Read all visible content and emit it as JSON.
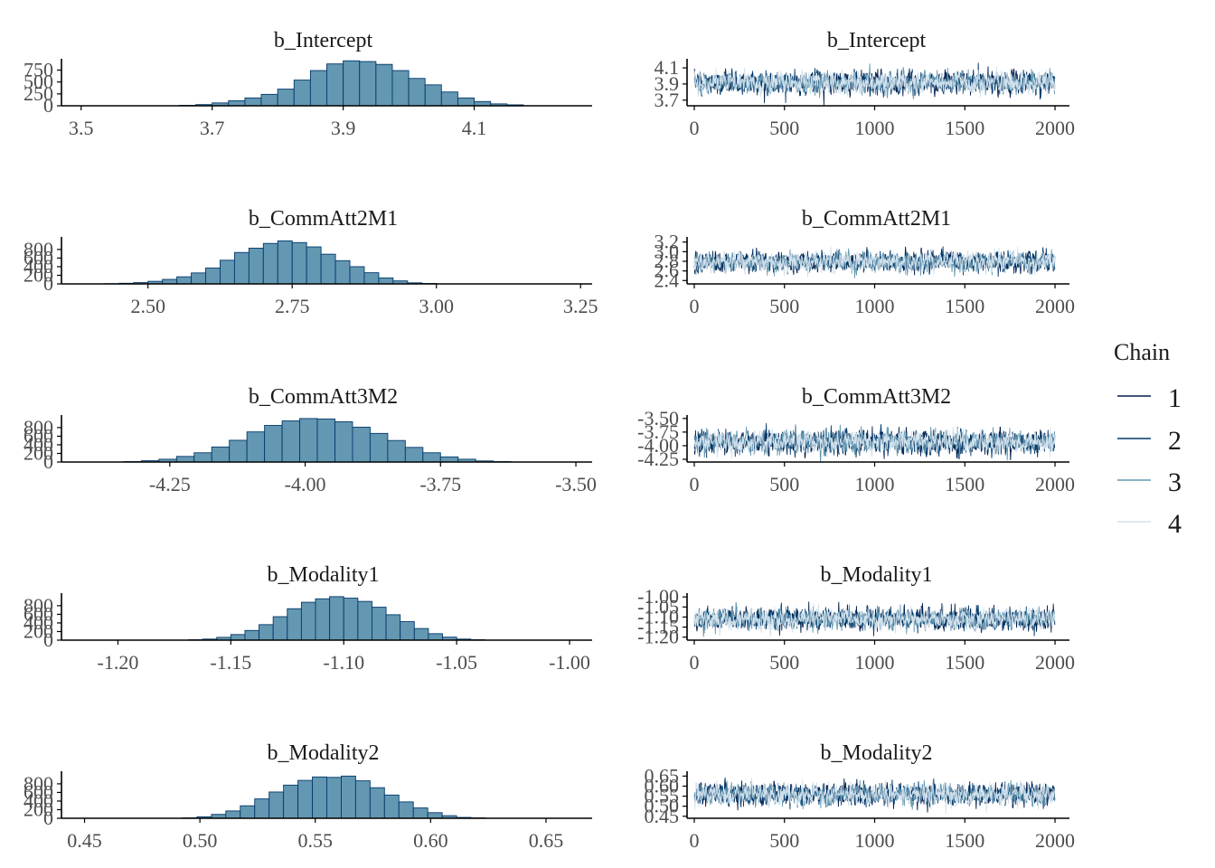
{
  "chart_data": [
    {
      "type": "histogram",
      "title": "b_Intercept",
      "xlim": [
        3.47,
        4.28
      ],
      "ylim": [
        0,
        950
      ],
      "xticks": [
        3.5,
        3.7,
        3.9,
        4.1
      ],
      "xtick_labels": [
        "3.5",
        "3.7",
        "3.9",
        "4.1"
      ],
      "yticks": [
        0,
        250,
        500,
        750
      ],
      "ytick_labels": [
        "0",
        "250",
        "500",
        "750"
      ],
      "bin_start": 3.5,
      "bin_width": 0.025,
      "counts": [
        0,
        0,
        0,
        0,
        0,
        0,
        10,
        25,
        60,
        105,
        165,
        240,
        350,
        540,
        740,
        880,
        945,
        930,
        870,
        740,
        575,
        440,
        290,
        165,
        90,
        40,
        20,
        0,
        0,
        0
      ]
    },
    {
      "type": "trace",
      "title": "b_CommAtt2M1",
      "xlim": [
        -40,
        2080
      ],
      "ylim": [
        2.33,
        3.27
      ],
      "xticks": [
        0,
        500,
        1000,
        1500,
        2000
      ],
      "xtick_labels": [
        "0",
        "500",
        "1000",
        "1500",
        "2000"
      ],
      "yticks": [
        2.4,
        2.6,
        2.8,
        3.0,
        3.2
      ],
      "ytick_labels": [
        "2.4",
        "2.6",
        "2.8",
        "3.0",
        "3.2"
      ],
      "chains": [
        "1",
        "2",
        "3",
        "4"
      ],
      "draws": 2000,
      "center": 2.79,
      "sd": 0.095
    }
  ],
  "panels": [
    {
      "hist": {
        "title": "b_Intercept",
        "xlim": [
          3.47,
          4.28
        ],
        "ylim": [
          0,
          950
        ],
        "xticks": [
          3.5,
          3.7,
          3.9,
          4.1
        ],
        "xtick_labels": [
          "3.5",
          "3.7",
          "3.9",
          "4.1"
        ],
        "yticks": [
          0,
          250,
          500,
          750
        ],
        "ytick_labels": [
          "0",
          "250",
          "500",
          "750"
        ],
        "bin_start": 3.5,
        "bin_width": 0.025,
        "counts": [
          0,
          0,
          0,
          0,
          0,
          0,
          10,
          25,
          60,
          105,
          165,
          240,
          350,
          540,
          740,
          880,
          945,
          930,
          870,
          740,
          575,
          440,
          290,
          165,
          90,
          40,
          20,
          0,
          0,
          0
        ]
      },
      "trace": {
        "title": "b_Intercept",
        "xlim": [
          -40,
          2080
        ],
        "ylim": [
          3.63,
          4.19
        ],
        "xticks": [
          0,
          500,
          1000,
          1500,
          2000
        ],
        "xtick_labels": [
          "0",
          "500",
          "1000",
          "1500",
          "2000"
        ],
        "yticks": [
          3.7,
          3.9,
          4.1
        ],
        "ytick_labels": [
          "3.7",
          "3.9",
          "4.1"
        ],
        "center": 3.92,
        "sd": 0.065
      }
    },
    {
      "hist": {
        "title": "b_CommAtt2M1",
        "xlim": [
          2.35,
          3.27
        ],
        "ylim": [
          0,
          1050
        ],
        "xticks": [
          2.5,
          2.75,
          3.0,
          3.25
        ],
        "xtick_labels": [
          "2.50",
          "2.75",
          "3.00",
          "3.25"
        ],
        "yticks": [
          0,
          200,
          400,
          600,
          800
        ],
        "ytick_labels": [
          "0",
          "200",
          "400",
          "600",
          "800"
        ],
        "bin_start": 2.425,
        "bin_width": 0.025,
        "counts": [
          5,
          15,
          30,
          60,
          105,
          165,
          255,
          370,
          550,
          730,
          830,
          940,
          1000,
          960,
          860,
          690,
          540,
          400,
          260,
          140,
          70,
          25,
          10,
          0
        ]
      },
      "trace": {
        "title": "b_CommAtt2M1",
        "xlim": [
          -40,
          2080
        ],
        "ylim": [
          2.33,
          3.27
        ],
        "xticks": [
          0,
          500,
          1000,
          1500,
          2000
        ],
        "xtick_labels": [
          "0",
          "500",
          "1000",
          "1500",
          "2000"
        ],
        "yticks": [
          2.4,
          2.6,
          2.8,
          3.0,
          3.2
        ],
        "ytick_labels": [
          "2.4",
          "2.6",
          "2.8",
          "3.0",
          "3.2"
        ],
        "center": 2.79,
        "sd": 0.095
      }
    },
    {
      "hist": {
        "title": "b_CommAtt3M2",
        "xlim": [
          -4.45,
          -3.47
        ],
        "ylim": [
          0,
          1050
        ],
        "xticks": [
          -4.25,
          -4.0,
          -3.75,
          -3.5
        ],
        "xtick_labels": [
          "-4.25",
          "-4.00",
          "-3.75",
          "-3.50"
        ],
        "yticks": [
          0,
          200,
          400,
          600,
          800
        ],
        "ytick_labels": [
          "0",
          "200",
          "400",
          "600",
          "800"
        ],
        "bin_start": -4.4,
        "bin_width": 0.0325,
        "counts": [
          0,
          0,
          10,
          30,
          65,
          130,
          215,
          350,
          505,
          700,
          850,
          955,
          1010,
          1000,
          935,
          810,
          665,
          500,
          340,
          215,
          120,
          65,
          25,
          10,
          0
        ]
      },
      "trace": {
        "title": "b_CommAtt3M2",
        "xlim": [
          -40,
          2080
        ],
        "ylim": [
          -4.3,
          -3.47
        ],
        "xticks": [
          0,
          500,
          1000,
          1500,
          2000
        ],
        "xtick_labels": [
          "0",
          "500",
          "1000",
          "1500",
          "2000"
        ],
        "yticks": [
          -4.25,
          -4.0,
          -3.75,
          -3.5
        ],
        "ytick_labels": [
          "-4.25",
          "-4.00",
          "-3.75",
          "-3.50"
        ],
        "center": -3.93,
        "sd": 0.1
      }
    },
    {
      "hist": {
        "title": "b_Modality1",
        "xlim": [
          -1.225,
          -0.99
        ],
        "ylim": [
          0,
          1050
        ],
        "xticks": [
          -1.2,
          -1.15,
          -1.1,
          -1.05,
          -1.0
        ],
        "xtick_labels": [
          "-1.20",
          "-1.15",
          "-1.10",
          "-1.05",
          "-1.00"
        ],
        "yticks": [
          0,
          200,
          400,
          600,
          800
        ],
        "ytick_labels": [
          "0",
          "200",
          "400",
          "600",
          "800"
        ],
        "bin_start": -1.2,
        "bin_width": 0.00625,
        "counts": [
          0,
          0,
          0,
          0,
          0,
          10,
          25,
          65,
          130,
          225,
          360,
          545,
          730,
          880,
          960,
          1010,
          975,
          900,
          765,
          590,
          430,
          270,
          150,
          70,
          25,
          10,
          0,
          0,
          0,
          0,
          0,
          0
        ]
      },
      "trace": {
        "title": "b_Modality1",
        "xlim": [
          -40,
          2080
        ],
        "ylim": [
          -1.215,
          -0.99
        ],
        "xticks": [
          0,
          500,
          1000,
          1500,
          2000
        ],
        "xtick_labels": [
          "0",
          "500",
          "1000",
          "1500",
          "2000"
        ],
        "yticks": [
          -1.2,
          -1.15,
          -1.1,
          -1.05,
          -1.0
        ],
        "ytick_labels": [
          "-1.20",
          "-1.15",
          "-1.10",
          "-1.05",
          "-1.00"
        ],
        "center": -1.11,
        "sd": 0.025
      }
    },
    {
      "hist": {
        "title": "b_Modality2",
        "xlim": [
          0.44,
          0.67
        ],
        "ylim": [
          0,
          1050
        ],
        "xticks": [
          0.45,
          0.5,
          0.55,
          0.6,
          0.65
        ],
        "xtick_labels": [
          "0.45",
          "0.50",
          "0.55",
          "0.60",
          "0.65"
        ],
        "yticks": [
          0,
          200,
          400,
          600,
          800
        ],
        "ytick_labels": [
          "0",
          "200",
          "400",
          "600",
          "800"
        ],
        "bin_start": 0.455,
        "bin_width": 0.00625,
        "counts": [
          0,
          0,
          0,
          0,
          0,
          0,
          10,
          35,
          90,
          170,
          290,
          450,
          610,
          770,
          880,
          960,
          950,
          980,
          870,
          710,
          540,
          380,
          240,
          130,
          60,
          20,
          10,
          0,
          0,
          0,
          0,
          0,
          0,
          0
        ]
      },
      "trace": {
        "title": "b_Modality2",
        "xlim": [
          -40,
          2080
        ],
        "ylim": [
          0.44,
          0.665
        ],
        "xticks": [
          0,
          500,
          1000,
          1500,
          2000
        ],
        "xtick_labels": [
          "0",
          "500",
          "1000",
          "1500",
          "2000"
        ],
        "yticks": [
          0.45,
          0.5,
          0.55,
          0.6,
          0.65
        ],
        "ytick_labels": [
          "0.45",
          "0.50",
          "0.55",
          "0.60",
          "0.65"
        ],
        "center": 0.56,
        "sd": 0.025
      }
    }
  ],
  "legend": {
    "title": "Chain",
    "items": [
      "1",
      "2",
      "3",
      "4"
    ]
  },
  "colors": {
    "bar_fill": "#6497b1",
    "bar_edge": "#03396c",
    "chains": [
      "#011f4b",
      "#03396c",
      "#6497b1",
      "#d1e1ec"
    ],
    "axis": "#000000",
    "tick_text": "#4d4d4d"
  }
}
